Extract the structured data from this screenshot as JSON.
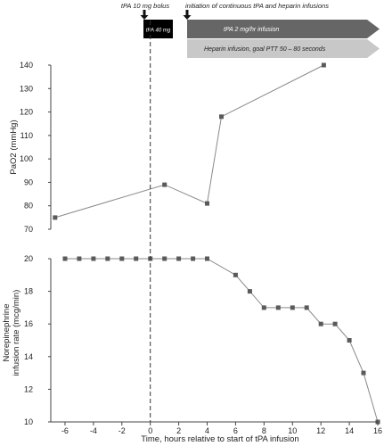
{
  "annotations": {
    "bolus_label": "tPA 10 mg bolus",
    "infusion_start_label": "initiation of continuous tPA and heparin infusions",
    "tpa_box_label": "tPA 40 mg",
    "tpa_infusion_label": "tPA 2 mg/hr infusion",
    "heparin_label": "Heparin infusion, goal PTT 50 – 80 seconds",
    "colors": {
      "tpa_box": "#000000",
      "tpa_infusion_bar": "#666666",
      "heparin_bar": "#c8c8c8"
    },
    "icons": [
      "down-arrow-icon",
      "down-arrow-icon"
    ]
  },
  "chart_data": [
    {
      "type": "line",
      "ylabel": "PaO2 (mmHg)",
      "xlim": [
        -7,
        16
      ],
      "ylim": [
        70,
        140
      ],
      "yticks": [
        "70",
        "80",
        "90",
        "100",
        "110",
        "120",
        "130",
        "140"
      ],
      "grid": false,
      "marker_color": "#5a5a5a",
      "line_color": "#8a8a8a",
      "series": [
        {
          "x": [
            -6.7,
            1,
            4,
            5,
            12.2
          ],
          "values": [
            75,
            89,
            81,
            118,
            140
          ]
        }
      ]
    },
    {
      "type": "line",
      "ylabel": "Norepinephrine infusion rate (mcg/min)",
      "xlabel": "Time, hours relative to start of tPA infusion",
      "xlim": [
        -7,
        16
      ],
      "ylim": [
        10,
        20
      ],
      "xticks": [
        "-6",
        "-4",
        "-2",
        "0",
        "2",
        "4",
        "6",
        "8",
        "10",
        "12",
        "14",
        "16"
      ],
      "yticks": [
        "10",
        "12",
        "14",
        "16",
        "18",
        "20"
      ],
      "grid": false,
      "marker_color": "#5a5a5a",
      "line_color": "#8a8a8a",
      "series": [
        {
          "x": [
            -6,
            -5,
            -4,
            -3,
            -2,
            -1,
            0,
            1,
            2,
            3,
            4,
            6,
            7,
            8,
            9,
            10,
            11,
            12,
            13,
            14,
            15,
            16
          ],
          "values": [
            20,
            20,
            20,
            20,
            20,
            20,
            20,
            20,
            20,
            20,
            20,
            19,
            18,
            17,
            17,
            17,
            17,
            16,
            16,
            15,
            13,
            10
          ]
        }
      ]
    }
  ]
}
